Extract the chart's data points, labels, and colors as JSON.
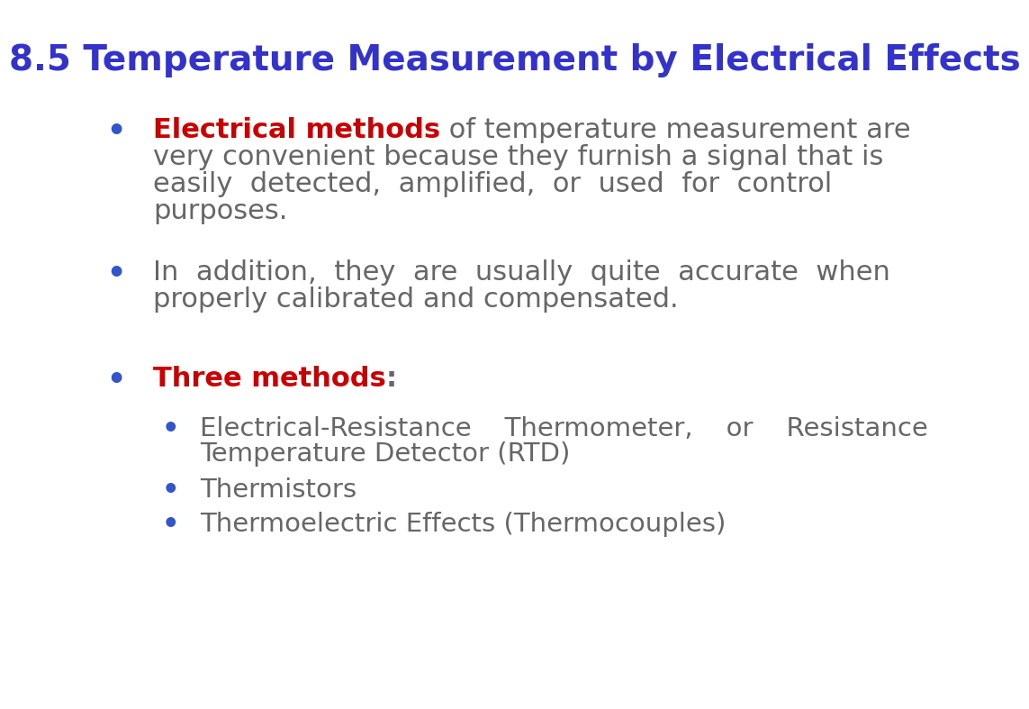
{
  "title": "8.5 Temperature Measurement by Electrical Effects",
  "title_color": "#3333cc",
  "title_fontsize": 28,
  "background_color": "#ffffff",
  "bullet_color": "#3355cc",
  "text_color": "#666666",
  "red_color": "#cc0000",
  "bullet1_red": "Electrical methods",
  "bullet1_rest_line1": " of temperature measurement are",
  "bullet1_line2": "very convenient because they furnish a signal that is",
  "bullet1_line3": "easily  detected,  amplified,  or  used  for  control",
  "bullet1_line4": "purposes.",
  "bullet2_line1": "In  addition,  they  are  usually  quite  accurate  when",
  "bullet2_line2": "properly calibrated and compensated.",
  "bullet3_red": "Three methods",
  "bullet3_colon": ":",
  "sub1_line1": "Electrical-Resistance    Thermometer,    or    Resistance",
  "sub1_line2": "Temperature Detector (RTD)",
  "sub2": "Thermistors",
  "sub3": "Thermoelectric Effects (Thermocouples)",
  "main_fontsize": 22,
  "sub_fontsize": 21,
  "bullet_fontsize": 24,
  "sub_bullet_fontsize": 22
}
